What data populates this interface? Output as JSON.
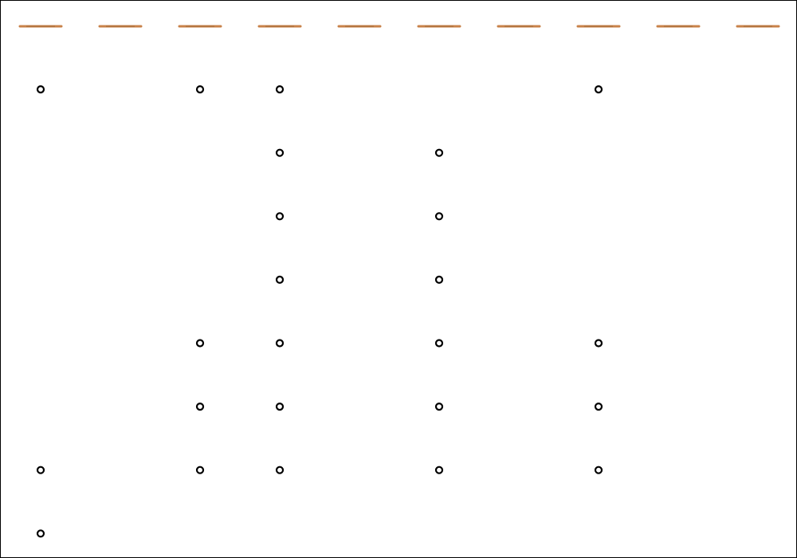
{
  "colors": {
    "background": "#ffffff",
    "frame": "#000000",
    "slot_marker": "#c8824a",
    "slot_marker_shadow": "#8a5a2b",
    "peg": "#000000"
  },
  "board": {
    "columns": 10,
    "rows": 8,
    "drop_slots": [
      0,
      1,
      2,
      3,
      4,
      5,
      6,
      7,
      8,
      9
    ],
    "pegs": [
      {
        "col": 0,
        "row": 1
      },
      {
        "col": 2,
        "row": 1
      },
      {
        "col": 3,
        "row": 1
      },
      {
        "col": 7,
        "row": 1
      },
      {
        "col": 3,
        "row": 2
      },
      {
        "col": 5,
        "row": 2
      },
      {
        "col": 3,
        "row": 3
      },
      {
        "col": 5,
        "row": 3
      },
      {
        "col": 3,
        "row": 4
      },
      {
        "col": 5,
        "row": 4
      },
      {
        "col": 2,
        "row": 5
      },
      {
        "col": 3,
        "row": 5
      },
      {
        "col": 5,
        "row": 5
      },
      {
        "col": 7,
        "row": 5
      },
      {
        "col": 2,
        "row": 6
      },
      {
        "col": 3,
        "row": 6
      },
      {
        "col": 5,
        "row": 6
      },
      {
        "col": 7,
        "row": 6
      },
      {
        "col": 0,
        "row": 7
      },
      {
        "col": 2,
        "row": 7
      },
      {
        "col": 3,
        "row": 7
      },
      {
        "col": 5,
        "row": 7
      },
      {
        "col": 7,
        "row": 7
      },
      {
        "col": 0,
        "row": 8
      }
    ]
  }
}
